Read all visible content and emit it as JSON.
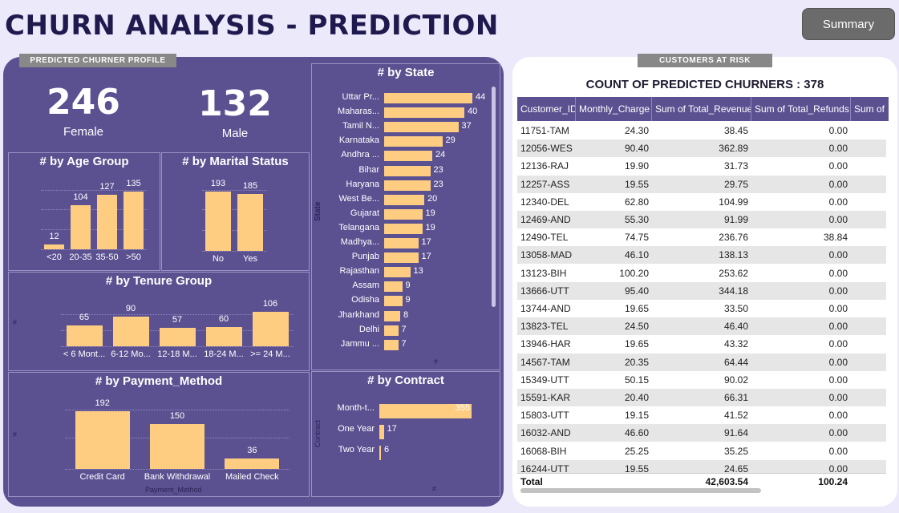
{
  "header": {
    "title": "CHURN ANALYSIS - PREDICTION",
    "summary_button": "Summary"
  },
  "profile": {
    "section_label": "PREDICTED CHURNER PROFILE",
    "female_count": "246",
    "female_label": "Female",
    "male_count": "132",
    "male_label": "Male"
  },
  "age_group": {
    "title": "# by Age Group",
    "categories": [
      "<20",
      "20-35",
      "35-50",
      ">50"
    ],
    "values": [
      12,
      104,
      127,
      135
    ]
  },
  "marital": {
    "title": "# by Marital Status",
    "categories": [
      "No",
      "Yes"
    ],
    "values": [
      193,
      185
    ]
  },
  "tenure": {
    "title": "# by Tenure Group",
    "axis_label": "#",
    "categories": [
      "< 6 Mont...",
      "6-12 Mo...",
      "12-18 M...",
      "18-24 M...",
      ">= 24 M..."
    ],
    "values": [
      65,
      90,
      57,
      60,
      106
    ]
  },
  "payment": {
    "title": "# by Payment_Method",
    "axis_label": "#",
    "xlabel": "Payment_Method",
    "categories": [
      "Credit Card",
      "Bank Withdrawal",
      "Mailed Check"
    ],
    "values": [
      192,
      150,
      36
    ]
  },
  "state": {
    "title": "# by State",
    "axis_label": "State",
    "xlabel": "#",
    "categories": [
      "Uttar Pr...",
      "Maharas...",
      "Tamil N...",
      "Karnataka",
      "Andhra ...",
      "Bihar",
      "Haryana",
      "West Be...",
      "Gujarat",
      "Telangana",
      "Madhya...",
      "Punjab",
      "Rajasthan",
      "Assam",
      "Odisha",
      "Jharkhand",
      "Delhi",
      "Jammu ..."
    ],
    "values": [
      44,
      40,
      37,
      29,
      24,
      23,
      23,
      20,
      19,
      19,
      17,
      17,
      13,
      9,
      9,
      8,
      7,
      7
    ]
  },
  "contract": {
    "title": "# by Contract",
    "axis_label": "Contract",
    "xlabel": "#",
    "categories": [
      "Month-t...",
      "One Year",
      "Two Year"
    ],
    "values": [
      355,
      17,
      6
    ]
  },
  "customers": {
    "section_label": "CUSTOMERS AT RISK",
    "count_title": "COUNT OF PREDICTED CHURNERS : 378",
    "columns": [
      "Customer_ID",
      "Monthly_Charge",
      "Sum of Total_Revenue",
      "Sum of Total_Refunds",
      "Sum of"
    ],
    "rows": [
      [
        "11751-TAM",
        "24.30",
        "38.45",
        "0.00"
      ],
      [
        "12056-WES",
        "90.40",
        "362.89",
        "0.00"
      ],
      [
        "12136-RAJ",
        "19.90",
        "31.73",
        "0.00"
      ],
      [
        "12257-ASS",
        "19.55",
        "29.75",
        "0.00"
      ],
      [
        "12340-DEL",
        "62.80",
        "104.99",
        "0.00"
      ],
      [
        "12469-AND",
        "55.30",
        "91.99",
        "0.00"
      ],
      [
        "12490-TEL",
        "74.75",
        "236.76",
        "38.84"
      ],
      [
        "13058-MAD",
        "46.10",
        "138.13",
        "0.00"
      ],
      [
        "13123-BIH",
        "100.20",
        "253.62",
        "0.00"
      ],
      [
        "13666-UTT",
        "95.40",
        "344.18",
        "0.00"
      ],
      [
        "13744-AND",
        "19.65",
        "33.50",
        "0.00"
      ],
      [
        "13823-TEL",
        "24.50",
        "46.40",
        "0.00"
      ],
      [
        "13946-HAR",
        "19.65",
        "43.32",
        "0.00"
      ],
      [
        "14567-TAM",
        "20.35",
        "64.44",
        "0.00"
      ],
      [
        "15349-UTT",
        "50.15",
        "90.02",
        "0.00"
      ],
      [
        "15591-KAR",
        "20.40",
        "66.31",
        "0.00"
      ],
      [
        "15803-UTT",
        "19.15",
        "41.52",
        "0.00"
      ],
      [
        "16032-AND",
        "46.60",
        "91.64",
        "0.00"
      ],
      [
        "16068-BIH",
        "25.25",
        "35.25",
        "0.00"
      ],
      [
        "16244-UTT",
        "19.55",
        "24.65",
        "0.00"
      ]
    ],
    "total": {
      "label": "Total",
      "revenue": "42,603.54",
      "refunds": "100.24"
    }
  },
  "chart_data": [
    {
      "type": "bar",
      "title": "# by Age Group",
      "categories": [
        "<20",
        "20-35",
        "35-50",
        ">50"
      ],
      "values": [
        12,
        104,
        127,
        135
      ]
    },
    {
      "type": "bar",
      "title": "# by Marital Status",
      "categories": [
        "No",
        "Yes"
      ],
      "values": [
        193,
        185
      ]
    },
    {
      "type": "bar",
      "title": "# by Tenure Group",
      "categories": [
        "< 6 Mont...",
        "6-12 Mo...",
        "12-18 M...",
        "18-24 M...",
        ">= 24 M..."
      ],
      "values": [
        65,
        90,
        57,
        60,
        106
      ],
      "ylabel": "#"
    },
    {
      "type": "bar",
      "title": "# by Payment_Method",
      "categories": [
        "Credit Card",
        "Bank Withdrawal",
        "Mailed Check"
      ],
      "values": [
        192,
        150,
        36
      ],
      "xlabel": "Payment_Method",
      "ylabel": "#"
    },
    {
      "type": "bar",
      "title": "# by State",
      "orientation": "horizontal",
      "categories": [
        "Uttar Pr...",
        "Maharas...",
        "Tamil N...",
        "Karnataka",
        "Andhra ...",
        "Bihar",
        "Haryana",
        "West Be...",
        "Gujarat",
        "Telangana",
        "Madhya...",
        "Punjab",
        "Rajasthan",
        "Assam",
        "Odisha",
        "Jharkhand",
        "Delhi",
        "Jammu ..."
      ],
      "values": [
        44,
        40,
        37,
        29,
        24,
        23,
        23,
        20,
        19,
        19,
        17,
        17,
        13,
        9,
        9,
        8,
        7,
        7
      ],
      "xlabel": "#",
      "ylabel": "State"
    },
    {
      "type": "bar",
      "title": "# by Contract",
      "orientation": "horizontal",
      "categories": [
        "Month-t...",
        "One Year",
        "Two Year"
      ],
      "values": [
        355,
        17,
        6
      ],
      "xlabel": "#",
      "ylabel": "Contract"
    }
  ]
}
